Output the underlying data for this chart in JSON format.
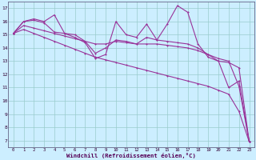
{
  "background_color": "#cceeff",
  "grid_color": "#99cccc",
  "line_color": "#993399",
  "xlabel": "Windchill (Refroidissement éolien,°C)",
  "x_hours": [
    0,
    1,
    2,
    3,
    4,
    5,
    6,
    7,
    8,
    9,
    10,
    11,
    12,
    13,
    14,
    15,
    16,
    17,
    18,
    19,
    20,
    21,
    22,
    23
  ],
  "series_main": [
    15.1,
    16.0,
    16.2,
    16.0,
    16.5,
    15.1,
    14.8,
    14.4,
    13.2,
    13.5,
    16.0,
    15.0,
    14.8,
    15.8,
    14.6,
    15.8,
    17.2,
    16.7,
    14.3,
    13.3,
    13.0,
    11.0,
    11.5,
    6.9
  ],
  "series_b": [
    15.1,
    16.0,
    16.1,
    15.9,
    15.2,
    15.1,
    15.0,
    14.5,
    13.6,
    14.0,
    14.6,
    14.5,
    14.3,
    14.8,
    14.6,
    14.5,
    14.4,
    14.3,
    14.0,
    13.5,
    13.0,
    12.9,
    12.5,
    6.9
  ],
  "trend_a": [
    15.1,
    15.7,
    15.5,
    15.3,
    15.1,
    14.9,
    14.7,
    14.5,
    14.3,
    14.3,
    14.5,
    14.4,
    14.3,
    14.3,
    14.3,
    14.2,
    14.1,
    14.0,
    13.8,
    13.5,
    13.2,
    13.0,
    11.1,
    6.9
  ],
  "trend_b": [
    15.1,
    15.4,
    15.1,
    14.8,
    14.5,
    14.2,
    13.9,
    13.6,
    13.3,
    13.1,
    12.9,
    12.7,
    12.5,
    12.3,
    12.1,
    11.9,
    11.7,
    11.5,
    11.3,
    11.1,
    10.8,
    10.5,
    9.2,
    6.9
  ],
  "ylim": [
    6.5,
    17.5
  ],
  "yticks": [
    7,
    8,
    9,
    10,
    11,
    12,
    13,
    14,
    15,
    16,
    17
  ],
  "xlim": [
    -0.5,
    23.5
  ]
}
